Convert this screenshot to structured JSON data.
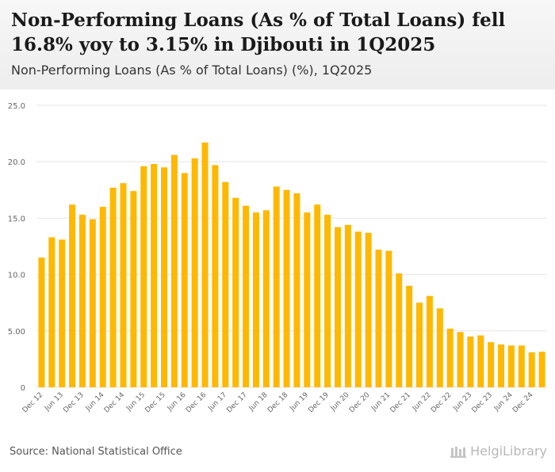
{
  "header": {
    "title": "Non-Performing Loans (As % of Total Loans) fell 16.8% yoy to 3.15% in Djibouti in 1Q2025",
    "subtitle": "Non-Performing Loans (As % of Total Loans) (%), 1Q2025"
  },
  "footer": {
    "source": "Source: National Statistical Office",
    "logo_text": "HelgiLibrary"
  },
  "colors": {
    "bar": "#FFB800",
    "grid": "#e6e6e6",
    "axis_text": "#666666"
  },
  "chart_data": {
    "type": "bar",
    "title": "Non-Performing Loans (As % of Total Loans) (%), 1Q2025",
    "xlabel": "",
    "ylabel": "",
    "ylim": [
      0,
      25
    ],
    "yticks": [
      "0",
      "5.00",
      "10.0",
      "15.0",
      "20.0",
      "25.0"
    ],
    "ytick_values": [
      0,
      5,
      10,
      15,
      20,
      25
    ],
    "categories": [
      "Dec 12",
      "Mar 13",
      "Jun 13",
      "Sep 13",
      "Dec 13",
      "Mar 14",
      "Jun 14",
      "Sep 14",
      "Dec 14",
      "Mar 15",
      "Jun 15",
      "Sep 15",
      "Dec 15",
      "Mar 16",
      "Jun 16",
      "Sep 16",
      "Dec 16",
      "Mar 17",
      "Jun 17",
      "Sep 17",
      "Dec 17",
      "Mar 18",
      "Jun 18",
      "Sep 18",
      "Dec 18",
      "Mar 19",
      "Jun 19",
      "Sep 19",
      "Dec 19",
      "Mar 20",
      "Jun 20",
      "Sep 20",
      "Dec 20",
      "Mar 21",
      "Jun 21",
      "Sep 21",
      "Dec 21",
      "Mar 22",
      "Jun 22",
      "Sep 22",
      "Dec 22",
      "Mar 23",
      "Jun 23",
      "Sep 23",
      "Dec 23",
      "Mar 24",
      "Jun 24",
      "Sep 24",
      "Dec 24",
      "Mar 25"
    ],
    "xtick_labels": [
      "Dec 12",
      "Jun 13",
      "Dec 13",
      "Jun 14",
      "Dec 14",
      "Jun 15",
      "Dec 15",
      "Jun 16",
      "Dec 16",
      "Jun 17",
      "Dec 17",
      "Jun 18",
      "Dec 18",
      "Jun 19",
      "Dec 19",
      "Jun 20",
      "Dec 20",
      "Jun 21",
      "Dec 21",
      "Jun 22",
      "Dec 22",
      "Jun 23",
      "Dec 23",
      "Jun 24",
      "Dec 24"
    ],
    "values": [
      11.5,
      13.3,
      13.1,
      16.2,
      15.3,
      14.9,
      16.0,
      17.7,
      18.1,
      17.4,
      19.6,
      19.8,
      19.5,
      20.6,
      19.0,
      20.3,
      21.7,
      19.7,
      18.2,
      16.8,
      16.1,
      15.5,
      15.7,
      17.8,
      17.5,
      17.2,
      15.5,
      16.2,
      15.3,
      14.2,
      14.4,
      13.8,
      13.7,
      12.2,
      12.1,
      10.1,
      9.0,
      7.5,
      8.1,
      7.0,
      5.2,
      4.9,
      4.5,
      4.6,
      4.0,
      3.8,
      3.7,
      3.7,
      3.1,
      3.15
    ]
  }
}
